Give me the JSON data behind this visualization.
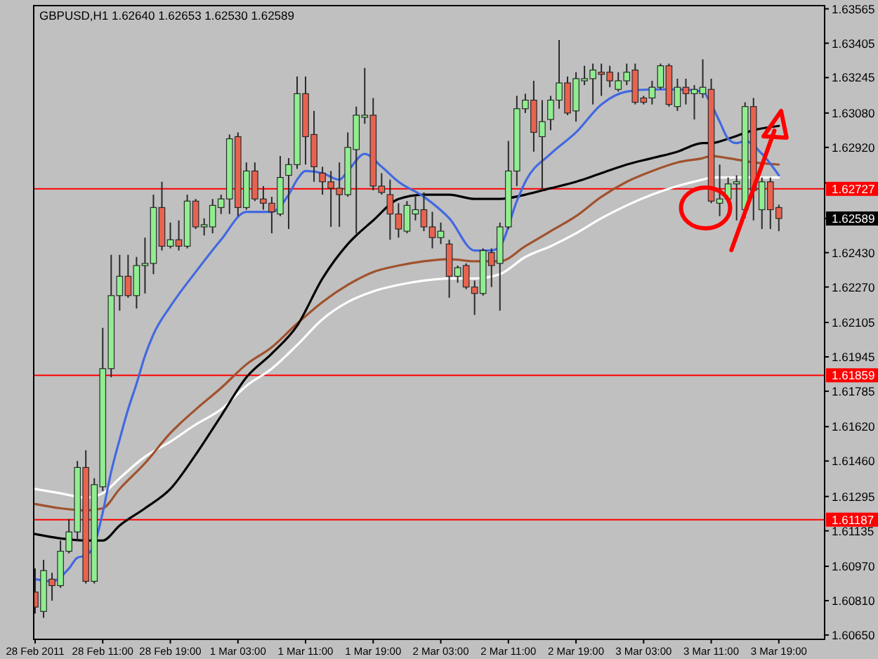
{
  "chart_data": {
    "type": "candlestick",
    "title": "GBPUSD,H1 1.62640 1.62653 1.62530 1.62589",
    "x": [
      "2011-02-28T03:00",
      "2011-02-28T04:00",
      "2011-02-28T05:00",
      "2011-02-28T06:00",
      "2011-02-28T07:00",
      "2011-02-28T08:00",
      "2011-02-28T09:00",
      "2011-02-28T10:00",
      "2011-02-28T11:00",
      "2011-02-28T12:00",
      "2011-02-28T13:00",
      "2011-02-28T14:00",
      "2011-02-28T15:00",
      "2011-02-28T16:00",
      "2011-02-28T17:00",
      "2011-02-28T18:00",
      "2011-02-28T19:00",
      "2011-02-28T20:00",
      "2011-02-28T21:00",
      "2011-02-28T22:00",
      "2011-02-28T23:00",
      "2011-03-01T00:00",
      "2011-03-01T01:00",
      "2011-03-01T02:00",
      "2011-03-01T03:00",
      "2011-03-01T04:00",
      "2011-03-01T05:00",
      "2011-03-01T06:00",
      "2011-03-01T07:00",
      "2011-03-01T08:00",
      "2011-03-01T09:00",
      "2011-03-01T10:00",
      "2011-03-01T11:00",
      "2011-03-01T12:00",
      "2011-03-01T13:00",
      "2011-03-01T14:00",
      "2011-03-01T15:00",
      "2011-03-01T16:00",
      "2011-03-01T17:00",
      "2011-03-01T18:00",
      "2011-03-01T19:00",
      "2011-03-01T20:00",
      "2011-03-01T21:00",
      "2011-03-01T22:00",
      "2011-03-01T23:00",
      "2011-03-02T00:00",
      "2011-03-02T01:00",
      "2011-03-02T02:00",
      "2011-03-02T03:00",
      "2011-03-02T04:00",
      "2011-03-02T05:00",
      "2011-03-02T06:00",
      "2011-03-02T07:00",
      "2011-03-02T08:00",
      "2011-03-02T09:00",
      "2011-03-02T10:00",
      "2011-03-02T11:00",
      "2011-03-02T12:00",
      "2011-03-02T13:00",
      "2011-03-02T14:00",
      "2011-03-02T15:00",
      "2011-03-02T16:00",
      "2011-03-02T17:00",
      "2011-03-02T18:00",
      "2011-03-02T19:00",
      "2011-03-02T20:00",
      "2011-03-02T21:00",
      "2011-03-02T22:00",
      "2011-03-02T23:00",
      "2011-03-03T00:00",
      "2011-03-03T01:00",
      "2011-03-03T02:00",
      "2011-03-03T03:00",
      "2011-03-03T04:00",
      "2011-03-03T05:00",
      "2011-03-03T06:00",
      "2011-03-03T07:00",
      "2011-03-03T08:00",
      "2011-03-03T09:00",
      "2011-03-03T10:00",
      "2011-03-03T11:00",
      "2011-03-03T12:00",
      "2011-03-03T13:00",
      "2011-03-03T14:00",
      "2011-03-03T15:00",
      "2011-03-03T16:00",
      "2011-03-03T17:00",
      "2011-03-03T18:00",
      "2011-03-03T19:00"
    ],
    "ohlc": [
      [
        1.6085,
        1.6096,
        1.6075,
        1.6078
      ],
      [
        1.6076,
        1.61,
        1.6073,
        1.6095
      ],
      [
        1.6091,
        1.6094,
        1.6081,
        1.6088
      ],
      [
        1.6088,
        1.6109,
        1.6087,
        1.6104
      ],
      [
        1.6104,
        1.6119,
        1.6103,
        1.6113
      ],
      [
        1.6113,
        1.6146,
        1.6109,
        1.6143
      ],
      [
        1.6143,
        1.6151,
        1.6089,
        1.609
      ],
      [
        1.609,
        1.6138,
        1.6089,
        1.6135
      ],
      [
        1.6134,
        1.6208,
        1.6132,
        1.6189
      ],
      [
        1.6189,
        1.6242,
        1.6185,
        1.6223
      ],
      [
        1.6223,
        1.6242,
        1.6216,
        1.6232
      ],
      [
        1.6232,
        1.6242,
        1.6222,
        1.6223
      ],
      [
        1.6223,
        1.6241,
        1.6217,
        1.6237
      ],
      [
        1.6237,
        1.625,
        1.6224,
        1.6238
      ],
      [
        1.6238,
        1.627,
        1.6233,
        1.6264
      ],
      [
        1.6264,
        1.6276,
        1.6244,
        1.6246
      ],
      [
        1.6246,
        1.6257,
        1.6245,
        1.6249
      ],
      [
        1.6249,
        1.6258,
        1.6244,
        1.6246
      ],
      [
        1.6246,
        1.627,
        1.6245,
        1.6267
      ],
      [
        1.6267,
        1.6268,
        1.6254,
        1.6255
      ],
      [
        1.6255,
        1.6259,
        1.6251,
        1.6256
      ],
      [
        1.6255,
        1.6268,
        1.6252,
        1.6265
      ],
      [
        1.6264,
        1.627,
        1.6261,
        1.6268
      ],
      [
        1.6268,
        1.6298,
        1.6261,
        1.6296
      ],
      [
        1.6297,
        1.6299,
        1.626,
        1.6264
      ],
      [
        1.6264,
        1.6285,
        1.6263,
        1.6281
      ],
      [
        1.6281,
        1.6285,
        1.6267,
        1.6268
      ],
      [
        1.6268,
        1.6274,
        1.6263,
        1.6266
      ],
      [
        1.6266,
        1.6269,
        1.6252,
        1.6262
      ],
      [
        1.6261,
        1.6288,
        1.626,
        1.6278
      ],
      [
        1.6279,
        1.6287,
        1.6254,
        1.6284
      ],
      [
        1.6284,
        1.6325,
        1.6282,
        1.6317
      ],
      [
        1.6317,
        1.6325,
        1.6284,
        1.6297
      ],
      [
        1.6298,
        1.6309,
        1.6276,
        1.6283
      ],
      [
        1.628,
        1.6283,
        1.627,
        1.6276
      ],
      [
        1.6276,
        1.6281,
        1.6255,
        1.6273
      ],
      [
        1.6273,
        1.6285,
        1.6255,
        1.627
      ],
      [
        1.627,
        1.6299,
        1.6269,
        1.6292
      ],
      [
        1.6291,
        1.6311,
        1.6252,
        1.6307
      ],
      [
        1.6306,
        1.6329,
        1.6303,
        1.6307
      ],
      [
        1.6307,
        1.6315,
        1.6272,
        1.6274
      ],
      [
        1.6274,
        1.628,
        1.627,
        1.6271
      ],
      [
        1.627,
        1.6277,
        1.6249,
        1.6261
      ],
      [
        1.6261,
        1.6266,
        1.625,
        1.6254
      ],
      [
        1.6253,
        1.6267,
        1.6252,
        1.6265
      ],
      [
        1.6261,
        1.6269,
        1.6258,
        1.6263
      ],
      [
        1.6263,
        1.6271,
        1.6253,
        1.6255
      ],
      [
        1.6255,
        1.6262,
        1.6245,
        1.625
      ],
      [
        1.625,
        1.6257,
        1.6247,
        1.6253
      ],
      [
        1.6247,
        1.6249,
        1.6222,
        1.6232
      ],
      [
        1.6232,
        1.6237,
        1.6229,
        1.6236
      ],
      [
        1.6237,
        1.6238,
        1.6226,
        1.6227
      ],
      [
        1.6227,
        1.623,
        1.6214,
        1.6224
      ],
      [
        1.6224,
        1.6245,
        1.6223,
        1.6244
      ],
      [
        1.6243,
        1.6245,
        1.6227,
        1.6237
      ],
      [
        1.6238,
        1.6257,
        1.6216,
        1.6255
      ],
      [
        1.6255,
        1.6295,
        1.6254,
        1.6281
      ],
      [
        1.6281,
        1.6316,
        1.6274,
        1.631
      ],
      [
        1.631,
        1.6317,
        1.6308,
        1.6314
      ],
      [
        1.6314,
        1.6323,
        1.629,
        1.6299
      ],
      [
        1.6297,
        1.6314,
        1.6272,
        1.6304
      ],
      [
        1.6305,
        1.6316,
        1.63,
        1.6314
      ],
      [
        1.6314,
        1.6342,
        1.631,
        1.6322
      ],
      [
        1.6322,
        1.6325,
        1.6307,
        1.6308
      ],
      [
        1.6309,
        1.6327,
        1.6304,
        1.6324
      ],
      [
        1.6323,
        1.633,
        1.6321,
        1.6324
      ],
      [
        1.6324,
        1.6331,
        1.6312,
        1.6328
      ],
      [
        1.6327,
        1.6331,
        1.6316,
        1.6326
      ],
      [
        1.6327,
        1.633,
        1.632,
        1.6323
      ],
      [
        1.6319,
        1.6327,
        1.6318,
        1.6323
      ],
      [
        1.6323,
        1.6331,
        1.6321,
        1.6327
      ],
      [
        1.6328,
        1.6331,
        1.6312,
        1.6313
      ],
      [
        1.6315,
        1.6316,
        1.6312,
        1.6313
      ],
      [
        1.6315,
        1.6323,
        1.6312,
        1.632
      ],
      [
        1.632,
        1.6331,
        1.6319,
        1.633
      ],
      [
        1.633,
        1.6331,
        1.6311,
        1.6312
      ],
      [
        1.6311,
        1.6324,
        1.6309,
        1.632
      ],
      [
        1.632,
        1.6324,
        1.6312,
        1.6317
      ],
      [
        1.6317,
        1.6321,
        1.6305,
        1.6319
      ],
      [
        1.6317,
        1.6333,
        1.6315,
        1.632
      ],
      [
        1.6319,
        1.6324,
        1.6266,
        1.6267
      ],
      [
        1.6266,
        1.6284,
        1.626,
        1.6268
      ],
      [
        1.6268,
        1.6278,
        1.6267,
        1.6275
      ],
      [
        1.6275,
        1.6279,
        1.6258,
        1.6276
      ],
      [
        1.6263,
        1.6313,
        1.6259,
        1.6311
      ],
      [
        1.6311,
        1.6315,
        1.6258,
        1.6272
      ],
      [
        1.6263,
        1.6278,
        1.6254,
        1.6276
      ],
      [
        1.6276,
        1.6278,
        1.6254,
        1.6263
      ],
      [
        1.6264,
        1.62653,
        1.6253,
        1.62589
      ]
    ],
    "colors": [
      "#e8634f",
      "#90ee90",
      "#e8634f",
      "#90ee90",
      "#90ee90",
      "#90ee90",
      "#e8634f",
      "#90ee90",
      "#90ee90",
      "#90ee90",
      "#90ee90",
      "#e8634f",
      "#90ee90",
      "#90ee90",
      "#90ee90",
      "#e8634f",
      "#90ee90",
      "#e8634f",
      "#90ee90",
      "#e8634f",
      "#90ee90",
      "#90ee90",
      "#90ee90",
      "#90ee90",
      "#e8634f",
      "#90ee90",
      "#e8634f",
      "#e8634f",
      "#e8634f",
      "#90ee90",
      "#90ee90",
      "#90ee90",
      "#e8634f",
      "#e8634f",
      "#e8634f",
      "#e8634f",
      "#e8634f",
      "#90ee90",
      "#90ee90",
      "#90ee90",
      "#e8634f",
      "#e8634f",
      "#e8634f",
      "#e8634f",
      "#90ee90",
      "#90ee90",
      "#e8634f",
      "#e8634f",
      "#90ee90",
      "#e8634f",
      "#90ee90",
      "#e8634f",
      "#e8634f",
      "#90ee90",
      "#e8634f",
      "#90ee90",
      "#90ee90",
      "#90ee90",
      "#90ee90",
      "#e8634f",
      "#90ee90",
      "#90ee90",
      "#90ee90",
      "#e8634f",
      "#90ee90",
      "#90ee90",
      "#90ee90",
      "#e8634f",
      "#e8634f",
      "#90ee90",
      "#90ee90",
      "#e8634f",
      "#e8634f",
      "#90ee90",
      "#90ee90",
      "#e8634f",
      "#90ee90",
      "#e8634f",
      "#90ee90",
      "#90ee90",
      "#e8634f",
      "#90ee90",
      "#90ee90",
      "#90ee90",
      "#90ee90",
      "#e8634f",
      "#90ee90",
      "#e8634f",
      "#e8634f"
    ],
    "series": [
      {
        "type": "line",
        "color": "#ffffff",
        "x": [
          "2011-02-28T03:00",
          "2011-02-28T06:00",
          "2011-02-28T09:00",
          "2011-02-28T11:00",
          "2011-02-28T13:00",
          "2011-02-28T16:00",
          "2011-02-28T19:00",
          "2011-02-28T22:00",
          "2011-03-01T01:00",
          "2011-03-01T04:00",
          "2011-03-01T07:00",
          "2011-03-01T10:00",
          "2011-03-01T13:00",
          "2011-03-01T16:00",
          "2011-03-01T19:00",
          "2011-03-01T22:00",
          "2011-03-02T01:00",
          "2011-03-02T04:00",
          "2011-03-02T07:00",
          "2011-03-02T10:00",
          "2011-03-02T13:00",
          "2011-03-02T16:00",
          "2011-03-02T19:00",
          "2011-03-02T22:00",
          "2011-03-03T01:00",
          "2011-03-03T04:00",
          "2011-03-03T07:00",
          "2011-03-03T10:00",
          "2011-03-03T11:00",
          "2011-03-03T13:00",
          "2011-03-03T16:00",
          "2011-03-03T19:00"
        ],
        "values": [
          1.6133,
          1.6131,
          1.6129,
          1.6131,
          1.6138,
          1.6148,
          1.6155,
          1.6163,
          1.617,
          1.6181,
          1.6189,
          1.62,
          1.6212,
          1.622,
          1.6225,
          1.6228,
          1.623,
          1.6231,
          1.6231,
          1.6233,
          1.6241,
          1.6246,
          1.6252,
          1.6259,
          1.6265,
          1.627,
          1.6274,
          1.6277,
          1.6278,
          1.6278,
          1.6278,
          1.6278
        ]
      },
      {
        "type": "line",
        "color": "#a0522d",
        "x": [
          "2011-02-28T03:00",
          "2011-02-28T06:00",
          "2011-02-28T09:00",
          "2011-02-28T11:00",
          "2011-02-28T13:00",
          "2011-02-28T16:00",
          "2011-02-28T19:00",
          "2011-02-28T22:00",
          "2011-03-01T01:00",
          "2011-03-01T04:00",
          "2011-03-01T07:00",
          "2011-03-01T10:00",
          "2011-03-01T13:00",
          "2011-03-01T16:00",
          "2011-03-01T19:00",
          "2011-03-01T22:00",
          "2011-03-02T01:00",
          "2011-03-02T04:00",
          "2011-03-02T07:00",
          "2011-03-02T10:00",
          "2011-03-02T13:00",
          "2011-03-02T16:00",
          "2011-03-02T19:00",
          "2011-03-02T22:00",
          "2011-03-03T01:00",
          "2011-03-03T04:00",
          "2011-03-03T07:00",
          "2011-03-03T10:00",
          "2011-03-03T11:00",
          "2011-03-03T13:00",
          "2011-03-03T16:00",
          "2011-03-03T19:00"
        ],
        "values": [
          1.6126,
          1.6124,
          1.6123,
          1.6124,
          1.6133,
          1.6145,
          1.6159,
          1.617,
          1.618,
          1.6191,
          1.6199,
          1.621,
          1.622,
          1.6228,
          1.6234,
          1.6237,
          1.6239,
          1.624,
          1.6239,
          1.6239,
          1.6246,
          1.6253,
          1.626,
          1.6269,
          1.6276,
          1.6281,
          1.6285,
          1.6287,
          1.6288,
          1.6287,
          1.6285,
          1.6284
        ]
      },
      {
        "type": "line",
        "color": "#000000",
        "x": [
          "2011-02-28T03:00",
          "2011-02-28T06:00",
          "2011-02-28T09:00",
          "2011-02-28T11:00",
          "2011-02-28T13:00",
          "2011-02-28T16:00",
          "2011-02-28T19:00",
          "2011-02-28T22:00",
          "2011-03-01T01:00",
          "2011-03-01T04:00",
          "2011-03-01T07:00",
          "2011-03-01T10:00",
          "2011-03-01T13:00",
          "2011-03-01T16:00",
          "2011-03-01T19:00",
          "2011-03-01T22:00",
          "2011-03-02T01:00",
          "2011-03-02T04:00",
          "2011-03-02T07:00",
          "2011-03-02T10:00",
          "2011-03-02T13:00",
          "2011-03-02T16:00",
          "2011-03-02T19:00",
          "2011-03-02T22:00",
          "2011-03-03T01:00",
          "2011-03-03T04:00",
          "2011-03-03T07:00",
          "2011-03-03T10:00",
          "2011-03-03T11:00",
          "2011-03-03T13:00",
          "2011-03-03T16:00",
          "2011-03-03T19:00"
        ],
        "values": [
          1.6112,
          1.611,
          1.6109,
          1.6109,
          1.6116,
          1.6124,
          1.6133,
          1.6149,
          1.6167,
          1.6185,
          1.6196,
          1.6209,
          1.6231,
          1.6247,
          1.6258,
          1.6268,
          1.627,
          1.627,
          1.6268,
          1.6268,
          1.627,
          1.6273,
          1.6276,
          1.628,
          1.6284,
          1.6287,
          1.629,
          1.6294,
          1.6294,
          1.6296,
          1.63,
          1.6302
        ]
      },
      {
        "type": "line",
        "color": "#4169e1",
        "x": [
          "2011-02-28T03:00",
          "2011-02-28T05:00",
          "2011-02-28T07:00",
          "2011-02-28T08:00",
          "2011-02-28T09:00",
          "2011-02-28T10:00",
          "2011-02-28T11:00",
          "2011-02-28T12:00",
          "2011-02-28T13:00",
          "2011-02-28T14:00",
          "2011-02-28T15:00",
          "2011-02-28T16:00",
          "2011-02-28T17:00",
          "2011-02-28T19:00",
          "2011-02-28T22:00",
          "2011-03-01T01:00",
          "2011-03-01T04:00",
          "2011-03-01T07:00",
          "2011-03-01T09:00",
          "2011-03-01T10:00",
          "2011-03-01T11:00",
          "2011-03-01T13:00",
          "2011-03-01T15:00",
          "2011-03-01T16:00",
          "2011-03-01T18:00",
          "2011-03-01T20:00",
          "2011-03-01T22:00",
          "2011-03-02T01:00",
          "2011-03-02T04:00",
          "2011-03-02T07:00",
          "2011-03-02T09:00",
          "2011-03-02T10:00",
          "2011-03-02T12:00",
          "2011-03-02T13:00",
          "2011-03-02T16:00",
          "2011-03-02T19:00",
          "2011-03-02T22:00",
          "2011-03-03T01:00",
          "2011-03-03T04:00",
          "2011-03-03T07:00",
          "2011-03-03T10:00",
          "2011-03-03T11:00",
          "2011-03-03T12:00",
          "2011-03-03T13:00",
          "2011-03-03T14:00",
          "2011-03-03T15:00",
          "2011-03-03T17:00",
          "2011-03-03T19:00"
        ],
        "values": [
          1.6091,
          1.609,
          1.6096,
          1.6101,
          1.6102,
          1.6107,
          1.6122,
          1.6141,
          1.6156,
          1.617,
          1.6182,
          1.6195,
          1.6205,
          1.6218,
          1.6234,
          1.6249,
          1.6262,
          1.6262,
          1.627,
          1.6277,
          1.6281,
          1.628,
          1.6277,
          1.6281,
          1.6289,
          1.6283,
          1.6276,
          1.6269,
          1.6259,
          1.6244,
          1.6244,
          1.6246,
          1.6267,
          1.6276,
          1.6289,
          1.6299,
          1.6312,
          1.6318,
          1.6319,
          1.6319,
          1.6318,
          1.6312,
          1.6304,
          1.6296,
          1.6294,
          1.6295,
          1.6289,
          1.6279
        ]
      }
    ],
    "xlim": [
      "2011-02-28T02:50",
      "2011-03-04T00:25"
    ],
    "xticks": [
      {
        "value": "2011-02-28T03:00",
        "label": "28 Feb 2011"
      },
      {
        "value": "2011-02-28T11:00",
        "label": "28 Feb 11:00"
      },
      {
        "value": "2011-02-28T19:00",
        "label": "28 Feb 19:00"
      },
      {
        "value": "2011-03-01T03:00",
        "label": "1 Mar 03:00"
      },
      {
        "value": "2011-03-01T11:00",
        "label": "1 Mar 11:00"
      },
      {
        "value": "2011-03-01T19:00",
        "label": "1 Mar 19:00"
      },
      {
        "value": "2011-03-02T03:00",
        "label": "2 Mar 03:00"
      },
      {
        "value": "2011-03-02T11:00",
        "label": "2 Mar 11:00"
      },
      {
        "value": "2011-03-02T19:00",
        "label": "2 Mar 19:00"
      },
      {
        "value": "2011-03-03T03:00",
        "label": "3 Mar 03:00"
      },
      {
        "value": "2011-03-03T11:00",
        "label": "3 Mar 11:00"
      },
      {
        "value": "2011-03-03T19:00",
        "label": "3 Mar 19:00"
      }
    ],
    "ylim": [
      1.6063,
      1.6358
    ],
    "yticks": [
      {
        "value": 1.6065,
        "label": "1.60650"
      },
      {
        "value": 1.6081,
        "label": "1.60810"
      },
      {
        "value": 1.6097,
        "label": "1.60970"
      },
      {
        "value": 1.61135,
        "label": "1.61135"
      },
      {
        "value": 1.61295,
        "label": "1.61295"
      },
      {
        "value": 1.6146,
        "label": "1.61460"
      },
      {
        "value": 1.6162,
        "label": "1.61620"
      },
      {
        "value": 1.61785,
        "label": "1.61785"
      },
      {
        "value": 1.61945,
        "label": "1.61945"
      },
      {
        "value": 1.62105,
        "label": "1.62105"
      },
      {
        "value": 1.6227,
        "label": "1.62270"
      },
      {
        "value": 1.6243,
        "label": "1.62430"
      },
      {
        "value": 1.62589,
        "label": "1.62589"
      },
      {
        "value": 1.62755,
        "label": null
      },
      {
        "value": 1.6292,
        "label": "1.62920"
      },
      {
        "value": 1.6308,
        "label": "1.63080"
      },
      {
        "value": 1.63245,
        "label": "1.63245"
      },
      {
        "value": 1.63405,
        "label": "1.63405"
      },
      {
        "value": 1.63565,
        "label": "1.63565"
      }
    ],
    "ref_lines": [
      {
        "axis": "y",
        "value": 1.62727,
        "label": "1.62727",
        "color": "#ff0000"
      },
      {
        "axis": "y",
        "value": 1.61859,
        "label": "1.61859",
        "color": "#ff0000"
      },
      {
        "axis": "y",
        "value": 1.61187,
        "label": "1.61187",
        "color": "#ff0000"
      }
    ]
  }
}
